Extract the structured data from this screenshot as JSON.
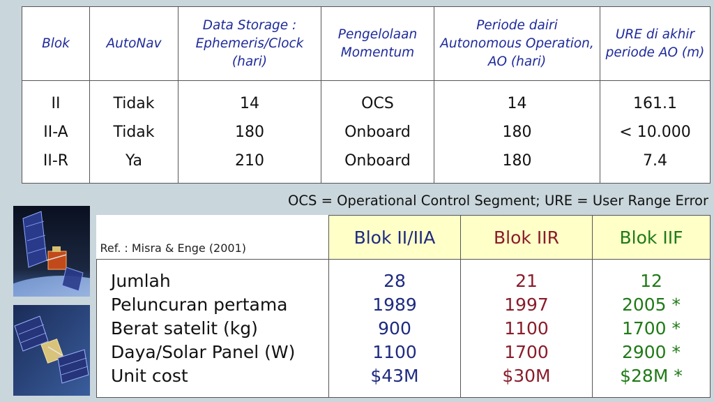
{
  "top_table": {
    "headers": [
      "Blok",
      "AutoNav",
      "Data Storage : Ephemeris/Clock (hari)",
      "Pengelolaan Momentum",
      "Periode dairi Autonomous Operation, AO (hari)",
      "URE di akhir periode AO (m)"
    ],
    "columns": [
      [
        "II",
        "II-A",
        "II-R"
      ],
      [
        "Tidak",
        "Tidak",
        "Ya"
      ],
      [
        "14",
        "180",
        "210"
      ],
      [
        "OCS",
        "Onboard",
        "Onboard"
      ],
      [
        "14",
        "180",
        "180"
      ],
      [
        "161.1",
        "< 10.000",
        "7.4"
      ]
    ]
  },
  "note": "OCS = Operational Control Segment; URE = User Range Error",
  "reference": "Ref. : Misra & Enge (2001)",
  "bottom_table": {
    "headers": [
      "Blok II/IIA",
      "Blok IIR",
      "Blok IIF"
    ],
    "header_colors": [
      "#1e2a80",
      "#8a1c2a",
      "#1f7a16"
    ],
    "labels": [
      "Jumlah",
      "Peluncuran pertama",
      "Berat satelit (kg)",
      "Daya/Solar Panel (W)",
      "Unit cost"
    ],
    "columns": [
      [
        "28",
        "1989",
        "900",
        "1100",
        "$43M"
      ],
      [
        "21",
        "1997",
        "1100",
        "1700",
        "$30M"
      ],
      [
        "12",
        "2005 *",
        "1700 *",
        "2900 *",
        "$28M *"
      ]
    ]
  }
}
